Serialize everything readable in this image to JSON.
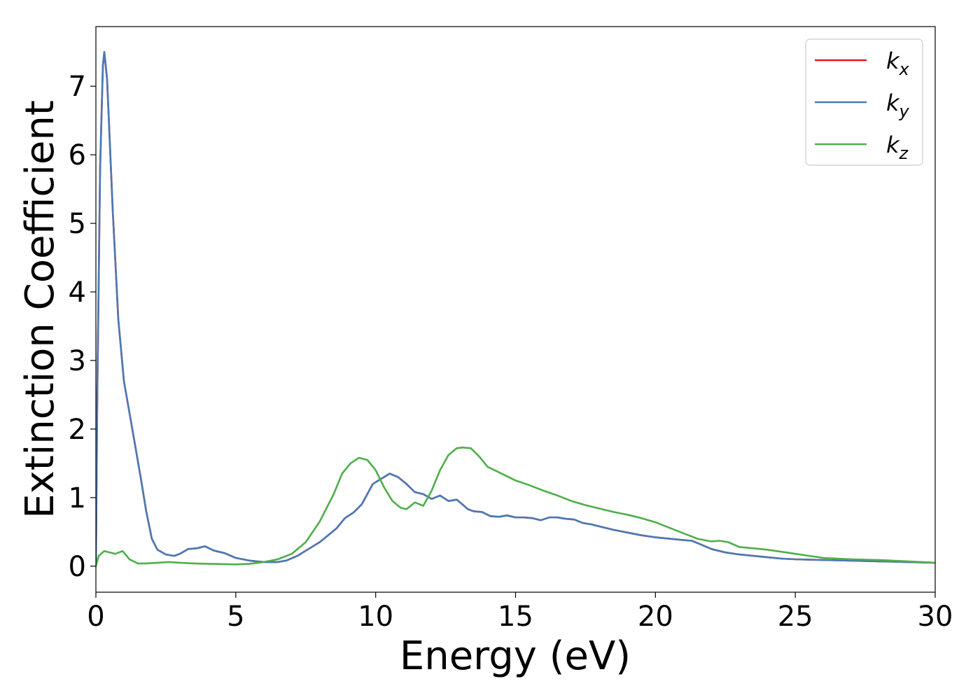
{
  "chart_data": {
    "type": "line",
    "xlabel": "Energy (eV)",
    "ylabel": "Extinction Coefficient",
    "xlim": [
      0,
      30
    ],
    "ylim": [
      -0.38,
      7.87
    ],
    "xticks": [
      0,
      5,
      10,
      15,
      20,
      25,
      30
    ],
    "yticks": [
      0,
      1,
      2,
      3,
      4,
      5,
      6,
      7
    ],
    "grid": false,
    "legend_position": "top-right",
    "series": [
      {
        "name": "k_x",
        "label_base": "k",
        "label_sub": "x",
        "color": "#e41a1c",
        "x": [
          0,
          0.05,
          0.15,
          0.25,
          0.3,
          0.4,
          0.6,
          0.8,
          1.0,
          1.3,
          1.6,
          1.8,
          2.0,
          2.2,
          2.5,
          2.8,
          3.0,
          3.3,
          3.6,
          3.9,
          4.2,
          4.6,
          5.0,
          5.5,
          6.0,
          6.5,
          6.8,
          7.2,
          7.6,
          8.0,
          8.3,
          8.6,
          8.9,
          9.2,
          9.5,
          9.7,
          9.9,
          10.1,
          10.3,
          10.5,
          10.8,
          11.1,
          11.4,
          11.7,
          12.0,
          12.3,
          12.6,
          12.9,
          13.1,
          13.3,
          13.5,
          13.8,
          14.1,
          14.4,
          14.7,
          15.0,
          15.3,
          15.6,
          15.9,
          16.2,
          16.5,
          16.8,
          17.1,
          17.4,
          17.7,
          18.0,
          18.5,
          19.0,
          19.5,
          20.0,
          20.5,
          21.0,
          21.3,
          21.6,
          22.0,
          22.5,
          23.0,
          23.5,
          24.0,
          24.5,
          25.0,
          26.0,
          27.0,
          28.0,
          29.0,
          30.0
        ],
        "y": [
          0,
          2.5,
          5.8,
          7.3,
          7.5,
          7.1,
          5.2,
          3.6,
          2.7,
          2.0,
          1.3,
          0.8,
          0.4,
          0.24,
          0.17,
          0.15,
          0.18,
          0.25,
          0.26,
          0.29,
          0.23,
          0.19,
          0.12,
          0.08,
          0.06,
          0.06,
          0.08,
          0.15,
          0.25,
          0.35,
          0.45,
          0.55,
          0.7,
          0.78,
          0.9,
          1.05,
          1.2,
          1.25,
          1.3,
          1.35,
          1.3,
          1.2,
          1.08,
          1.05,
          0.98,
          1.03,
          0.95,
          0.97,
          0.9,
          0.83,
          0.8,
          0.79,
          0.73,
          0.72,
          0.74,
          0.71,
          0.71,
          0.7,
          0.67,
          0.71,
          0.71,
          0.69,
          0.68,
          0.63,
          0.61,
          0.58,
          0.53,
          0.49,
          0.45,
          0.42,
          0.4,
          0.38,
          0.37,
          0.32,
          0.25,
          0.2,
          0.17,
          0.15,
          0.13,
          0.11,
          0.1,
          0.09,
          0.08,
          0.07,
          0.06,
          0.05
        ]
      },
      {
        "name": "k_y",
        "label_base": "k",
        "label_sub": "y",
        "color": "#4a7ab5",
        "x": [
          0,
          0.05,
          0.15,
          0.25,
          0.3,
          0.4,
          0.6,
          0.8,
          1.0,
          1.3,
          1.6,
          1.8,
          2.0,
          2.2,
          2.5,
          2.8,
          3.0,
          3.3,
          3.6,
          3.9,
          4.2,
          4.6,
          5.0,
          5.5,
          6.0,
          6.5,
          6.8,
          7.2,
          7.6,
          8.0,
          8.3,
          8.6,
          8.9,
          9.2,
          9.5,
          9.7,
          9.9,
          10.1,
          10.3,
          10.5,
          10.8,
          11.1,
          11.4,
          11.7,
          12.0,
          12.3,
          12.6,
          12.9,
          13.1,
          13.3,
          13.5,
          13.8,
          14.1,
          14.4,
          14.7,
          15.0,
          15.3,
          15.6,
          15.9,
          16.2,
          16.5,
          16.8,
          17.1,
          17.4,
          17.7,
          18.0,
          18.5,
          19.0,
          19.5,
          20.0,
          20.5,
          21.0,
          21.3,
          21.6,
          22.0,
          22.5,
          23.0,
          23.5,
          24.0,
          24.5,
          25.0,
          26.0,
          27.0,
          28.0,
          29.0,
          30.0
        ],
        "y": [
          0,
          2.5,
          5.8,
          7.3,
          7.5,
          7.1,
          5.2,
          3.6,
          2.7,
          2.0,
          1.3,
          0.8,
          0.4,
          0.24,
          0.17,
          0.15,
          0.18,
          0.25,
          0.26,
          0.29,
          0.23,
          0.19,
          0.12,
          0.08,
          0.06,
          0.06,
          0.08,
          0.15,
          0.25,
          0.35,
          0.45,
          0.55,
          0.7,
          0.78,
          0.9,
          1.05,
          1.2,
          1.25,
          1.3,
          1.35,
          1.3,
          1.2,
          1.08,
          1.05,
          0.98,
          1.03,
          0.95,
          0.97,
          0.9,
          0.83,
          0.8,
          0.79,
          0.73,
          0.72,
          0.74,
          0.71,
          0.71,
          0.7,
          0.67,
          0.71,
          0.71,
          0.69,
          0.68,
          0.63,
          0.61,
          0.58,
          0.53,
          0.49,
          0.45,
          0.42,
          0.4,
          0.38,
          0.37,
          0.32,
          0.25,
          0.2,
          0.17,
          0.15,
          0.13,
          0.11,
          0.1,
          0.09,
          0.08,
          0.07,
          0.06,
          0.05
        ]
      },
      {
        "name": "k_z",
        "label_base": "k",
        "label_sub": "z",
        "color": "#4daf4a",
        "x": [
          0,
          0.1,
          0.3,
          0.5,
          0.7,
          0.95,
          1.2,
          1.5,
          1.8,
          2.2,
          2.6,
          3.0,
          3.5,
          4.0,
          4.5,
          5.0,
          5.5,
          6.0,
          6.5,
          7.0,
          7.5,
          8.0,
          8.5,
          8.8,
          9.1,
          9.4,
          9.7,
          10.0,
          10.3,
          10.6,
          10.9,
          11.1,
          11.4,
          11.7,
          12.0,
          12.3,
          12.6,
          12.9,
          13.1,
          13.4,
          13.7,
          14.0,
          14.5,
          15.0,
          15.5,
          16.0,
          16.5,
          17.0,
          17.5,
          18.0,
          18.5,
          19.0,
          19.5,
          20.0,
          20.5,
          21.0,
          21.5,
          22.0,
          22.3,
          22.6,
          23.0,
          23.5,
          24.0,
          24.5,
          25.0,
          25.5,
          26.0,
          27.0,
          28.0,
          29.0,
          30.0
        ],
        "y": [
          0,
          0.15,
          0.22,
          0.2,
          0.18,
          0.22,
          0.1,
          0.04,
          0.04,
          0.05,
          0.06,
          0.05,
          0.04,
          0.035,
          0.03,
          0.025,
          0.035,
          0.06,
          0.1,
          0.18,
          0.35,
          0.65,
          1.05,
          1.35,
          1.5,
          1.58,
          1.55,
          1.4,
          1.15,
          0.95,
          0.85,
          0.83,
          0.93,
          0.88,
          1.1,
          1.4,
          1.62,
          1.72,
          1.73,
          1.72,
          1.6,
          1.45,
          1.35,
          1.25,
          1.18,
          1.1,
          1.03,
          0.95,
          0.89,
          0.84,
          0.79,
          0.75,
          0.7,
          0.64,
          0.56,
          0.48,
          0.4,
          0.36,
          0.37,
          0.35,
          0.28,
          0.26,
          0.24,
          0.21,
          0.18,
          0.15,
          0.12,
          0.1,
          0.09,
          0.07,
          0.05
        ]
      }
    ]
  }
}
